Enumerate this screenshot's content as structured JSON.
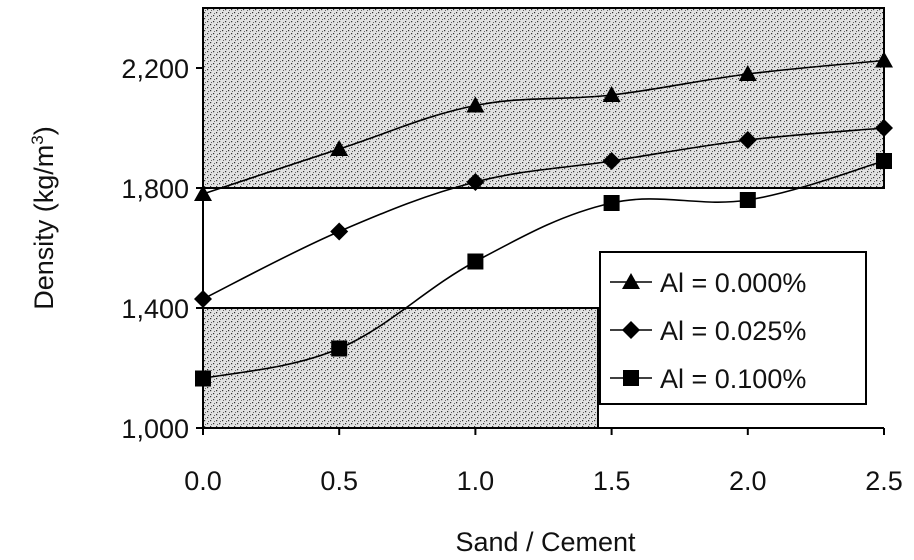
{
  "chart_data": {
    "type": "line",
    "xlabel": "Sand / Cement",
    "ylabel": "Density (kg/m",
    "ylabel_sup": "3",
    "ylabel_close": ")",
    "xlim": [
      0,
      2.5
    ],
    "ylim": [
      1000,
      2400
    ],
    "x_ticks": [
      "0.0",
      "0.5",
      "1.0",
      "1.5",
      "2.0",
      "2.5"
    ],
    "y_ticks": [
      "1,000",
      "1,400",
      "1,800",
      "2,200"
    ],
    "x": [
      0.0,
      0.5,
      1.0,
      1.5,
      2.0,
      2.5
    ],
    "series": [
      {
        "name": "Al = 0.000%",
        "marker": "triangle",
        "values": [
          1780,
          1930,
          2075,
          2110,
          2180,
          2225
        ]
      },
      {
        "name": "Al = 0.025%",
        "marker": "diamond",
        "values": [
          1430,
          1655,
          1820,
          1890,
          1960,
          2000
        ]
      },
      {
        "name": "Al = 0.100%",
        "marker": "square",
        "values": [
          1165,
          1265,
          1555,
          1750,
          1760,
          1890
        ]
      }
    ],
    "shaded_bands": [
      {
        "x_range": [
          0,
          2.5
        ],
        "y_range": [
          1800,
          2400
        ]
      },
      {
        "x_range": [
          0,
          1.45
        ],
        "y_range": [
          1000,
          1400
        ]
      }
    ],
    "legend_position": "center-right",
    "grid": false
  }
}
